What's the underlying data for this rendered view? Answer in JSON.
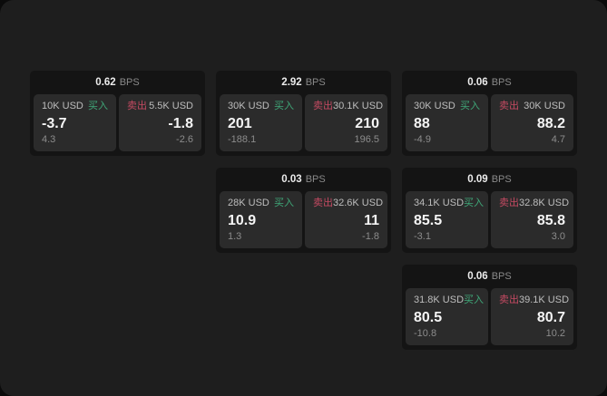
{
  "labels": {
    "buy": "买入",
    "sell": "卖出",
    "bps_unit": "BPS"
  },
  "colors": {
    "buy_green": "#3fa778",
    "sell_red": "#c44a62",
    "page_bg": "#1e1e1e",
    "card_bg": "#141414",
    "panel_bg": "#2b2b2b"
  },
  "cards": [
    {
      "bps": "0.62",
      "buy": {
        "amount": "10K USD",
        "value": "-3.7",
        "change": "4.3"
      },
      "sell": {
        "amount": "5.5K USD",
        "value": "-1.8",
        "change": "-2.6"
      }
    },
    {
      "bps": "2.92",
      "buy": {
        "amount": "30K USD",
        "value": "201",
        "change": "-188.1"
      },
      "sell": {
        "amount": "30.1K USD",
        "value": "210",
        "change": "196.5"
      }
    },
    {
      "bps": "0.06",
      "buy": {
        "amount": "30K USD",
        "value": "88",
        "change": "-4.9"
      },
      "sell": {
        "amount": "30K USD",
        "value": "88.2",
        "change": "4.7"
      }
    },
    {
      "bps": "0.03",
      "buy": {
        "amount": "28K USD",
        "value": "10.9",
        "change": "1.3"
      },
      "sell": {
        "amount": "32.6K USD",
        "value": "11",
        "change": "-1.8"
      }
    },
    {
      "bps": "0.09",
      "buy": {
        "amount": "34.1K USD",
        "value": "85.5",
        "change": "-3.1"
      },
      "sell": {
        "amount": "32.8K USD",
        "value": "85.8",
        "change": "3.0"
      }
    },
    {
      "bps": "0.06",
      "buy": {
        "amount": "31.8K USD",
        "value": "80.5",
        "change": "-10.8"
      },
      "sell": {
        "amount": "39.1K USD",
        "value": "80.7",
        "change": "10.2"
      }
    }
  ]
}
